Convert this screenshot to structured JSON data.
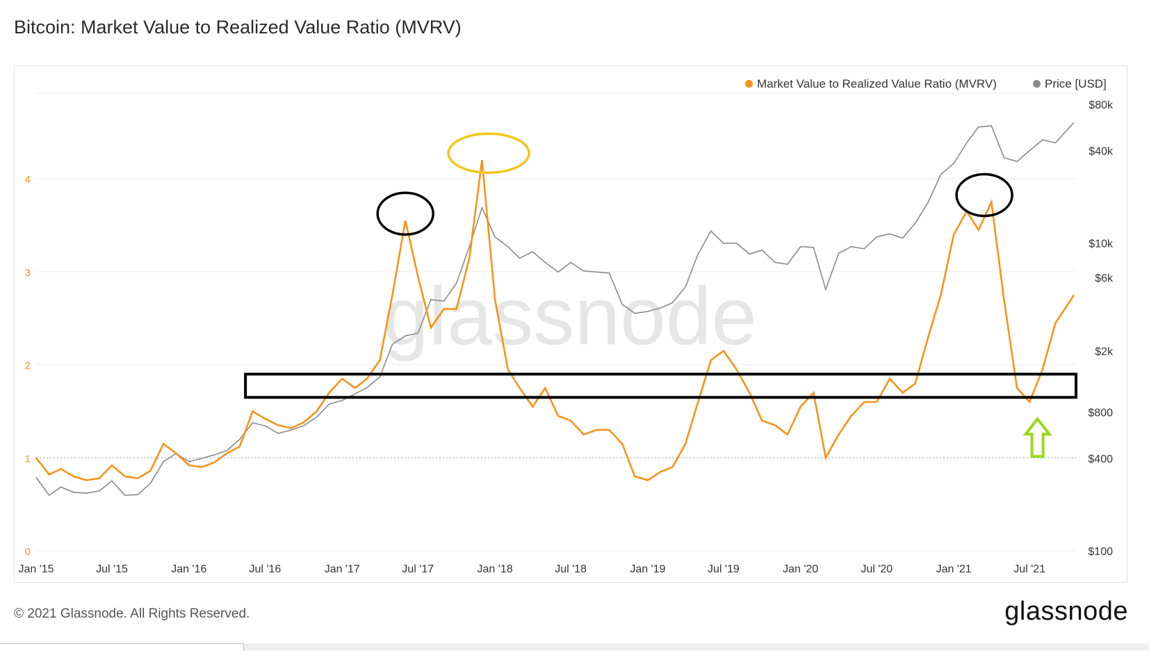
{
  "title": "Bitcoin: Market Value to Realized Value Ratio (MVRV)",
  "footer": {
    "copyright": "© 2021 Glassnode. All Rights Reserved.",
    "logo": "glassnode"
  },
  "watermark": "glassnode",
  "colors": {
    "mvrv": "#f7931a",
    "price": "#8a8a8a",
    "highlight_yellow": "#f5c518",
    "highlight_black": "#000000",
    "arrow_green": "#9ad81c",
    "grid": "#eeeeee"
  },
  "legend": [
    {
      "label": "Market Value to Realized Value Ratio (MVRV)",
      "color": "#f7931a"
    },
    {
      "label": "Price [USD]",
      "color": "#8a8a8a"
    }
  ],
  "chart_data": {
    "type": "line",
    "x_axis": {
      "ticks": [
        "Jan '15",
        "Jul '15",
        "Jan '16",
        "Jul '16",
        "Jan '17",
        "Jul '17",
        "Jan '18",
        "Jul '18",
        "Jan '19",
        "Jul '19",
        "Jan '20",
        "Jul '20",
        "Jan '21",
        "Jul '21"
      ],
      "range": [
        "2015-01-01",
        "2021-10-20"
      ]
    },
    "y_left": {
      "ticks": [
        "0",
        "1",
        "2",
        "3",
        "4"
      ],
      "range": [
        0,
        4.8
      ],
      "color": "#f7931a"
    },
    "y_right": {
      "ticks": [
        "$100",
        "$400",
        "$800",
        "$2k",
        "$6k",
        "$10k",
        "$40k",
        "$80k"
      ],
      "scale": "log",
      "range": [
        100,
        80000
      ]
    },
    "reference_line": {
      "axis": "left",
      "value": 1,
      "style": "dotted"
    },
    "series": [
      {
        "name": "Market Value to Realized Value Ratio (MVRV)",
        "axis": "left",
        "color": "#f7931a",
        "x": [
          "2015-01-01",
          "2015-02-01",
          "2015-03-01",
          "2015-04-01",
          "2015-05-01",
          "2015-06-01",
          "2015-07-01",
          "2015-08-01",
          "2015-09-01",
          "2015-10-01",
          "2015-11-01",
          "2015-12-01",
          "2016-01-01",
          "2016-02-01",
          "2016-03-01",
          "2016-04-01",
          "2016-05-01",
          "2016-06-01",
          "2016-07-01",
          "2016-08-01",
          "2016-09-01",
          "2016-10-01",
          "2016-11-01",
          "2016-12-01",
          "2017-01-01",
          "2017-02-01",
          "2017-03-01",
          "2017-04-01",
          "2017-05-01",
          "2017-06-01",
          "2017-07-01",
          "2017-08-01",
          "2017-09-01",
          "2017-10-01",
          "2017-11-01",
          "2017-12-01",
          "2018-01-01",
          "2018-02-01",
          "2018-03-01",
          "2018-04-01",
          "2018-05-01",
          "2018-06-01",
          "2018-07-01",
          "2018-08-01",
          "2018-09-01",
          "2018-10-01",
          "2018-11-01",
          "2018-12-01",
          "2019-01-01",
          "2019-02-01",
          "2019-03-01",
          "2019-04-01",
          "2019-05-01",
          "2019-06-01",
          "2019-07-01",
          "2019-08-01",
          "2019-09-01",
          "2019-10-01",
          "2019-11-01",
          "2019-12-01",
          "2020-01-01",
          "2020-02-01",
          "2020-03-01",
          "2020-04-01",
          "2020-05-01",
          "2020-06-01",
          "2020-07-01",
          "2020-08-01",
          "2020-09-01",
          "2020-10-01",
          "2020-11-01",
          "2020-12-01",
          "2021-01-01",
          "2021-02-01",
          "2021-03-01",
          "2021-04-01",
          "2021-05-01",
          "2021-06-01",
          "2021-07-01",
          "2021-08-01",
          "2021-09-01",
          "2021-10-15"
        ],
        "values": [
          1.0,
          0.82,
          0.88,
          0.8,
          0.76,
          0.78,
          0.92,
          0.8,
          0.78,
          0.86,
          1.15,
          1.05,
          0.92,
          0.9,
          0.95,
          1.05,
          1.12,
          1.5,
          1.42,
          1.35,
          1.32,
          1.38,
          1.5,
          1.7,
          1.85,
          1.75,
          1.85,
          2.05,
          2.75,
          3.55,
          2.95,
          2.4,
          2.6,
          2.6,
          3.15,
          4.2,
          2.7,
          1.95,
          1.75,
          1.55,
          1.75,
          1.45,
          1.4,
          1.25,
          1.3,
          1.3,
          1.15,
          0.8,
          0.76,
          0.85,
          0.9,
          1.15,
          1.6,
          2.05,
          2.15,
          1.95,
          1.7,
          1.4,
          1.35,
          1.25,
          1.55,
          1.7,
          1.0,
          1.25,
          1.45,
          1.6,
          1.6,
          1.85,
          1.7,
          1.8,
          2.3,
          2.75,
          3.4,
          3.65,
          3.45,
          3.75,
          2.7,
          1.75,
          1.6,
          1.95,
          2.45,
          2.75
        ]
      },
      {
        "name": "Price [USD]",
        "axis": "right",
        "color": "#8a8a8a",
        "x": [
          "2015-01-01",
          "2015-02-01",
          "2015-03-01",
          "2015-04-01",
          "2015-05-01",
          "2015-06-01",
          "2015-07-01",
          "2015-08-01",
          "2015-09-01",
          "2015-10-01",
          "2015-11-01",
          "2015-12-01",
          "2016-01-01",
          "2016-02-01",
          "2016-03-01",
          "2016-04-01",
          "2016-05-01",
          "2016-06-01",
          "2016-07-01",
          "2016-08-01",
          "2016-09-01",
          "2016-10-01",
          "2016-11-01",
          "2016-12-01",
          "2017-01-01",
          "2017-02-01",
          "2017-03-01",
          "2017-04-01",
          "2017-05-01",
          "2017-06-01",
          "2017-07-01",
          "2017-08-01",
          "2017-09-01",
          "2017-10-01",
          "2017-11-01",
          "2017-12-01",
          "2018-01-01",
          "2018-02-01",
          "2018-03-01",
          "2018-04-01",
          "2018-05-01",
          "2018-06-01",
          "2018-07-01",
          "2018-08-01",
          "2018-09-01",
          "2018-10-01",
          "2018-11-01",
          "2018-12-01",
          "2019-01-01",
          "2019-02-01",
          "2019-03-01",
          "2019-04-01",
          "2019-05-01",
          "2019-06-01",
          "2019-07-01",
          "2019-08-01",
          "2019-09-01",
          "2019-10-01",
          "2019-11-01",
          "2019-12-01",
          "2020-01-01",
          "2020-02-01",
          "2020-03-01",
          "2020-04-01",
          "2020-05-01",
          "2020-06-01",
          "2020-07-01",
          "2020-08-01",
          "2020-09-01",
          "2020-10-01",
          "2020-11-01",
          "2020-12-01",
          "2021-01-01",
          "2021-02-01",
          "2021-03-01",
          "2021-04-01",
          "2021-05-01",
          "2021-06-01",
          "2021-07-01",
          "2021-08-01",
          "2021-09-01",
          "2021-10-15"
        ],
        "values": [
          300,
          230,
          260,
          240,
          237,
          245,
          285,
          230,
          232,
          275,
          380,
          430,
          380,
          400,
          420,
          450,
          530,
          680,
          650,
          580,
          610,
          650,
          740,
          900,
          950,
          1050,
          1150,
          1350,
          2200,
          2500,
          2600,
          4300,
          4200,
          5500,
          9500,
          17000,
          11000,
          9500,
          8000,
          8800,
          7500,
          6500,
          7500,
          6600,
          6500,
          6400,
          4000,
          3500,
          3600,
          3800,
          4100,
          5200,
          8500,
          12000,
          10000,
          10000,
          8500,
          9000,
          7500,
          7300,
          9500,
          9400,
          5000,
          8600,
          9500,
          9200,
          11000,
          11500,
          10800,
          13500,
          18500,
          28000,
          33000,
          45000,
          57000,
          58000,
          36000,
          34000,
          40000,
          47000,
          45000,
          61000
        ]
      }
    ],
    "annotations": [
      {
        "type": "ellipse",
        "color": "#000000",
        "x": "2017-06-01",
        "y": 3.55
      },
      {
        "type": "ellipse",
        "color": "#f5c518",
        "x": "2017-12-17",
        "y": 4.2
      },
      {
        "type": "ellipse",
        "color": "#000000",
        "x": "2021-03-15",
        "y": 3.75
      },
      {
        "type": "rectangle",
        "color": "#000000",
        "x_range": [
          "2016-05-15",
          "2021-10-20"
        ],
        "y_range": [
          1.65,
          1.9
        ]
      },
      {
        "type": "arrow",
        "direction": "up",
        "color": "#9ad81c",
        "x": "2021-07-20",
        "y": 1.0
      }
    ]
  }
}
